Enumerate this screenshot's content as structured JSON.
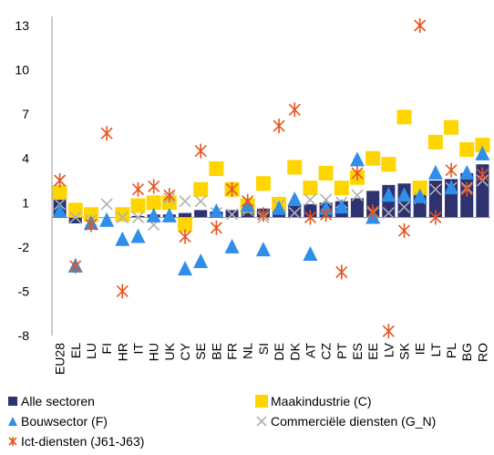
{
  "chart_data": {
    "type": "bar",
    "title": "",
    "xlabel": "",
    "ylabel": "",
    "ylim": [
      -8,
      14
    ],
    "yticks": [
      -8,
      -5,
      -2,
      1,
      4,
      7,
      10,
      13
    ],
    "grid": false,
    "legend_position": "bottom",
    "categories": [
      "EU28",
      "EL",
      "LU",
      "FI",
      "HR",
      "IT",
      "HU",
      "UK",
      "CY",
      "SE",
      "BE",
      "FR",
      "NL",
      "SI",
      "DE",
      "DK",
      "AT",
      "CZ",
      "PT",
      "ES",
      "EE",
      "LV",
      "SK",
      "IE",
      "LT",
      "PL",
      "BG",
      "RO"
    ],
    "series": [
      {
        "name": "Alle sectoren",
        "render": "bar",
        "color": "#2e3270",
        "values": [
          1.2,
          -0.4,
          -0.2,
          0.0,
          0.0,
          0.1,
          0.2,
          0.2,
          0.3,
          0.5,
          0.4,
          0.5,
          0.6,
          0.6,
          0.7,
          0.8,
          0.9,
          1.0,
          1.1,
          1.3,
          1.8,
          2.2,
          2.3,
          2.3,
          2.5,
          2.6,
          3.0,
          3.6
        ]
      },
      {
        "name": "Maakindustrie (C)",
        "render": "square",
        "color": "#ffd500",
        "values": [
          1.7,
          0.5,
          0.2,
          null,
          0.2,
          0.8,
          1.0,
          1.0,
          -0.5,
          1.9,
          3.3,
          1.9,
          0.8,
          2.3,
          0.9,
          3.4,
          2.0,
          3.0,
          2.0,
          2.7,
          4.0,
          3.6,
          6.8,
          2.0,
          5.1,
          6.1,
          4.6,
          4.9
        ]
      },
      {
        "name": "Bouwsector (F)",
        "render": "triangle",
        "color": "#2e8ee8",
        "values": [
          0.4,
          -3.3,
          -0.4,
          -0.2,
          -1.5,
          -1.3,
          0.1,
          0.1,
          -3.5,
          -3.0,
          0.4,
          -2.0,
          0.8,
          -2.2,
          0.6,
          1.2,
          -2.5,
          0.6,
          0.7,
          3.9,
          0.0,
          1.5,
          1.5,
          1.4,
          3.0,
          2.0,
          3.0,
          4.3
        ]
      },
      {
        "name": "Commerciële diensten (G_N)",
        "render": "x",
        "color": "#b0b0b0",
        "values": [
          0.9,
          0.0,
          -0.2,
          0.9,
          0.0,
          0.0,
          -0.5,
          1.3,
          1.1,
          1.1,
          0.3,
          0.2,
          0.5,
          0.0,
          0.8,
          0.3,
          1.2,
          1.2,
          1.0,
          1.5,
          0.3,
          0.3,
          0.7,
          1.3,
          1.9,
          2.0,
          2.0,
          2.5
        ]
      },
      {
        "name": "Ict-diensten (J61-J63)",
        "render": "asterisk",
        "color": "#e8541c",
        "values": [
          2.5,
          -3.3,
          -0.5,
          5.7,
          -5.0,
          1.9,
          2.1,
          1.5,
          -1.3,
          4.5,
          -0.7,
          1.9,
          1.1,
          0.2,
          6.2,
          7.3,
          0.0,
          0.2,
          -3.7,
          3.0,
          0.4,
          -7.7,
          -0.9,
          13.0,
          0.0,
          3.2,
          1.9,
          2.9
        ]
      }
    ]
  },
  "legend": {
    "items": [
      {
        "label": "Alle sectoren",
        "icon": "square",
        "color": "#2e3270"
      },
      {
        "label": "Maakindustrie (C)",
        "icon": "square",
        "color": "#ffd500"
      },
      {
        "label": "Bouwsector (F)",
        "icon": "triangle",
        "color": "#2e8ee8"
      },
      {
        "label": "Commerciële diensten (G_N)",
        "icon": "x",
        "color": "#b0b0b0"
      },
      {
        "label": "Ict-diensten (J61-J63)",
        "icon": "asterisk",
        "color": "#e8541c"
      }
    ]
  }
}
